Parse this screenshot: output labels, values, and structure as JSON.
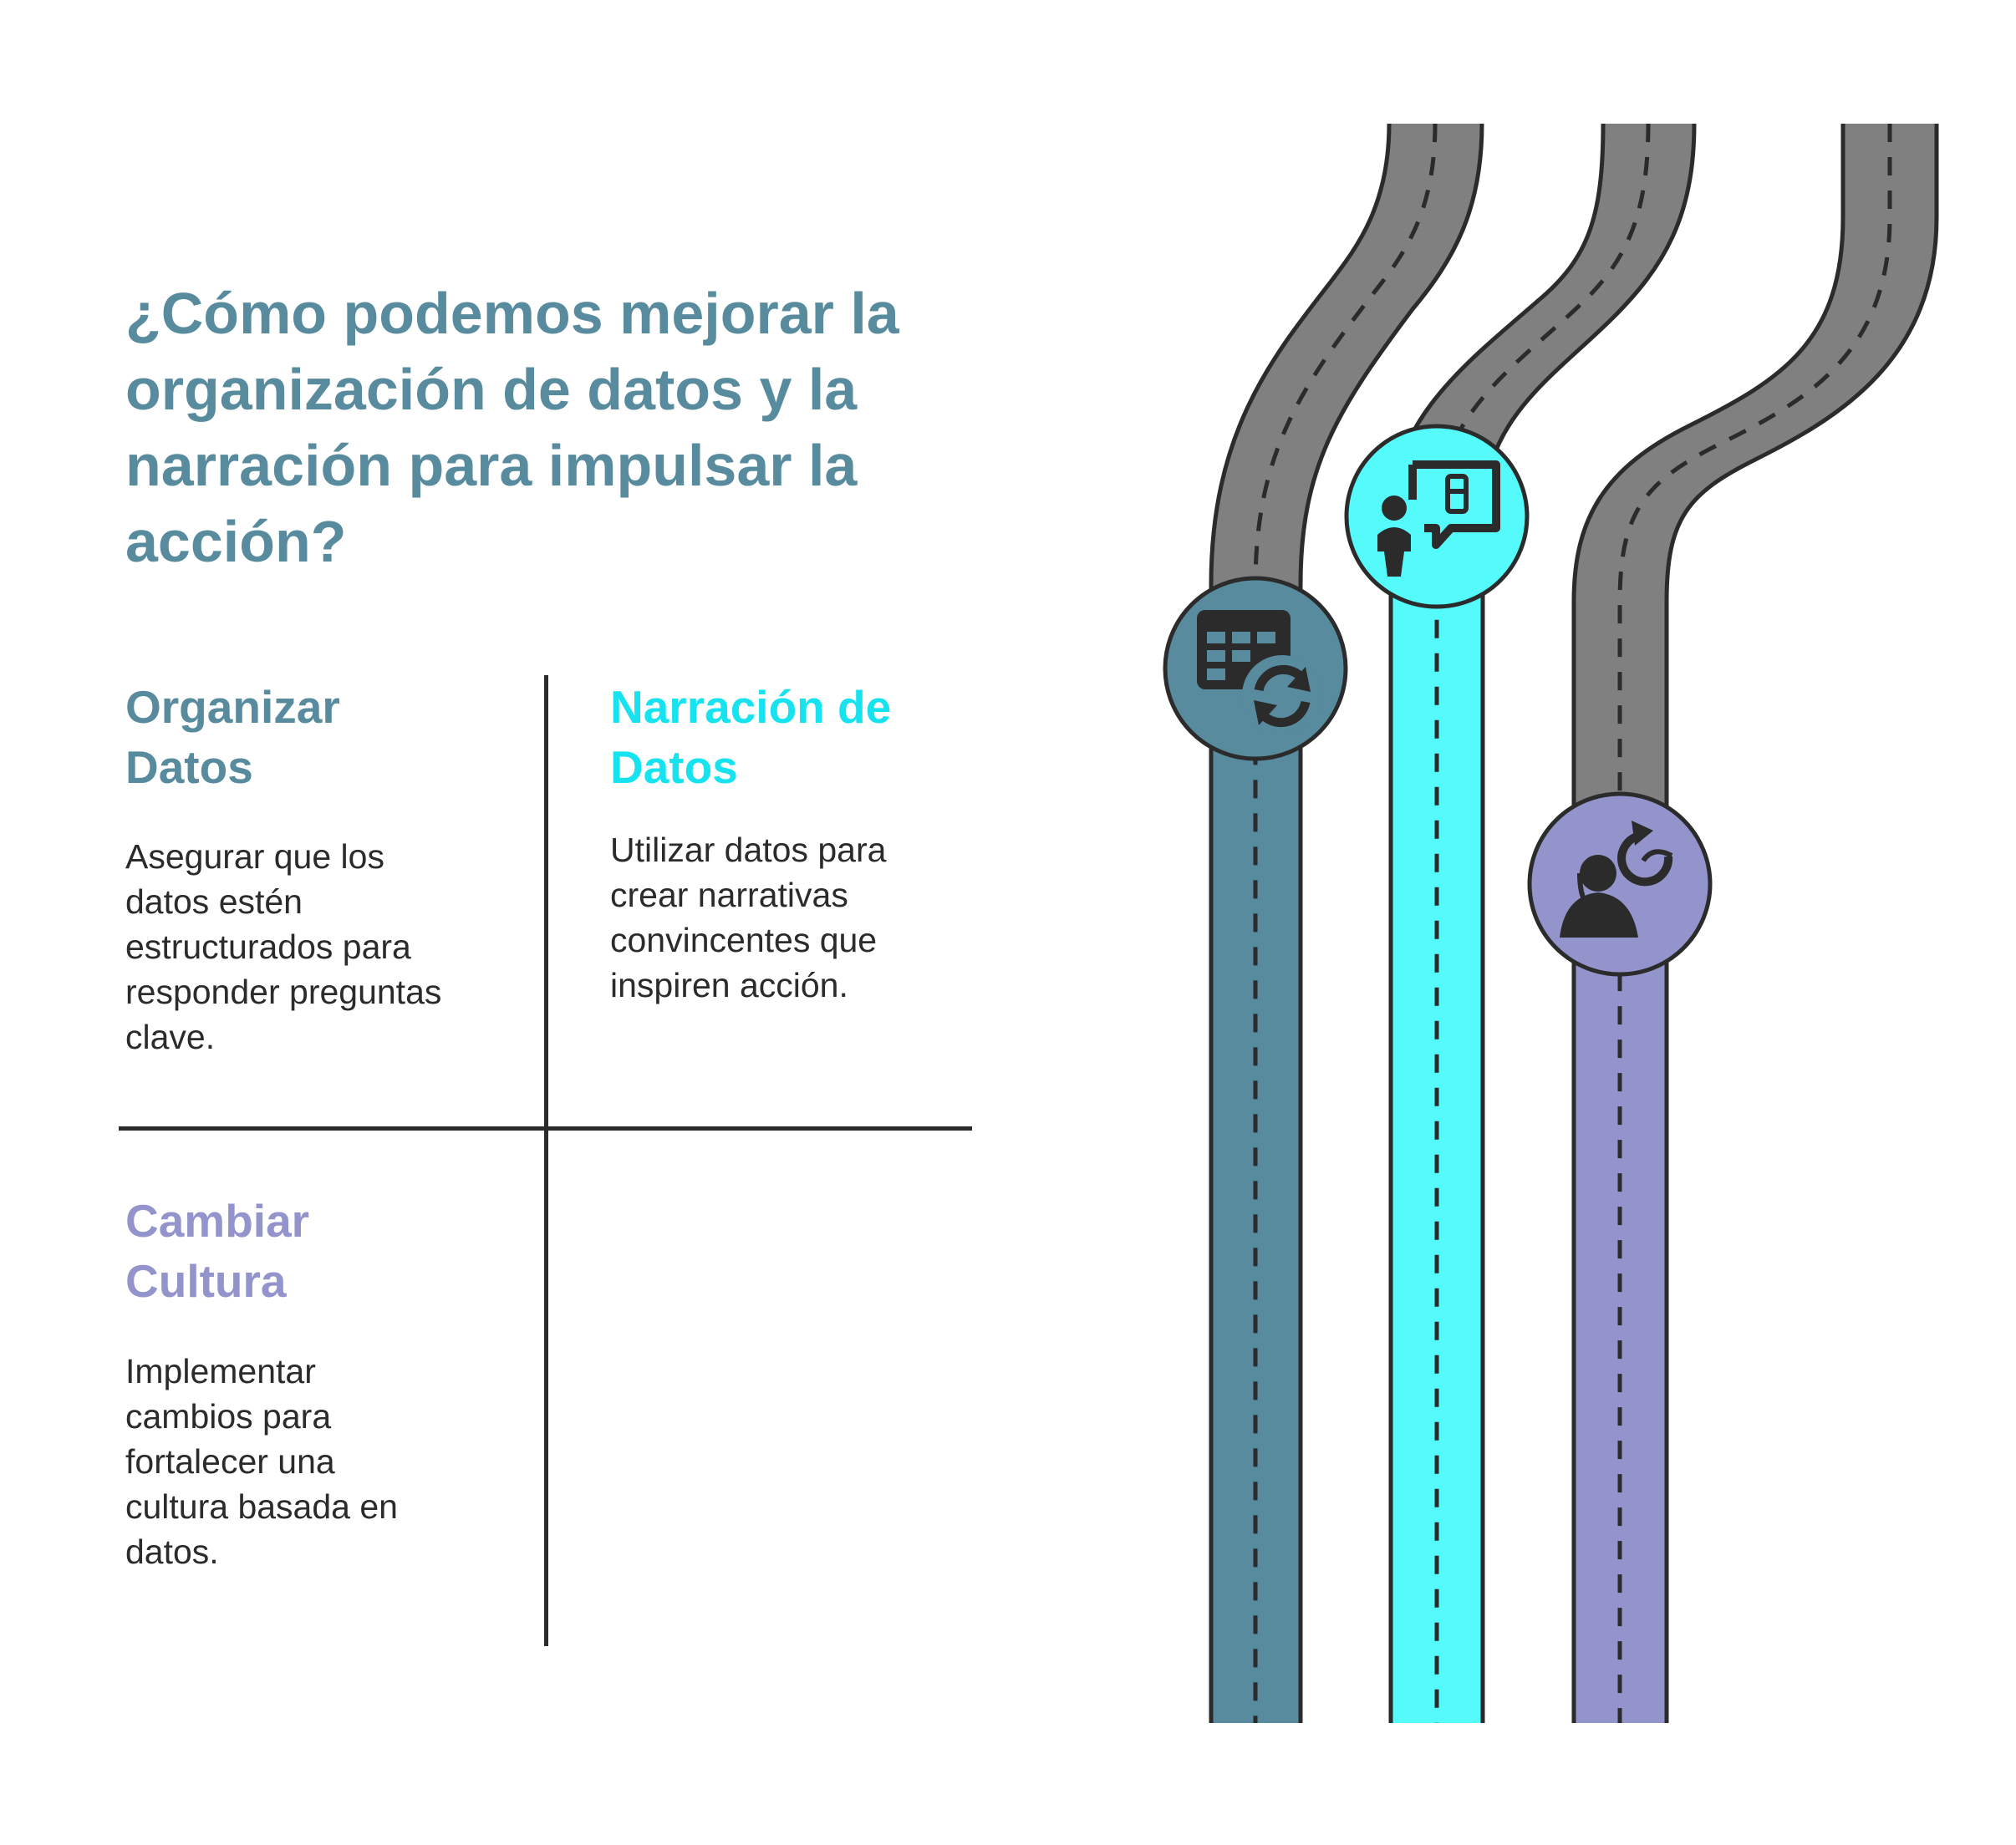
{
  "colors": {
    "title": "#578b9d",
    "organize": "#578b9d",
    "story": "#16e3ef",
    "culture": "#9494cc",
    "road_gray": "#808080",
    "road_teal": "#578b9d",
    "road_cyan": "#55fafa",
    "road_purple": "#9494cc",
    "outline": "#2b2b2b"
  },
  "title": "¿Cómo podemos mejorar la organización de datos y la narración para impulsar la acción?",
  "cells": {
    "organize": {
      "heading_line1": "Organizar",
      "heading_line2": "Datos",
      "text_lines": [
        "Asegurar que los",
        "datos estén",
        "estructurados para",
        "responder preguntas",
        "clave."
      ]
    },
    "story": {
      "heading_line1": "Narración de",
      "heading_line2": "Datos",
      "text_lines": [
        "Utilizar datos para",
        "crear narrativas",
        "convincentes que",
        "inspiren acción."
      ]
    },
    "culture": {
      "heading_line1": "Cambiar",
      "heading_line2": "Cultura",
      "text_lines": [
        "Implementar",
        "cambios para",
        "fortalecer una",
        "cultura basada en",
        "datos."
      ]
    }
  },
  "icons": {
    "organize": "table-refresh-icon",
    "story": "presenter-speech-icon",
    "culture": "person-refresh-icon"
  }
}
